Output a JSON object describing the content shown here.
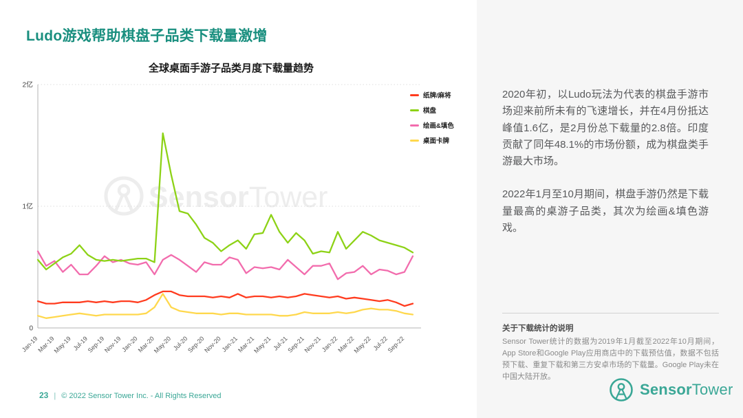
{
  "page": {
    "title": "Ludo游戏帮助棋盘子品类下载量激增",
    "page_number": "23",
    "copyright": "© 2022 Sensor Tower Inc. - All Rights Reserved",
    "brand": {
      "name_bold": "Sensor",
      "name_light": "Tower",
      "teal": "#3aa796"
    }
  },
  "right_panel": {
    "paragraphs": [
      "2020年初，以Ludo玩法为代表的棋盘手游市场迎来前所未有的飞速增长，并在4月份抵达峰值1.6亿，是2月份总下载量的2.8倍。印度贡献了同年48.1%的市场份额，成为棋盘类手游最大市场。",
      "2022年1月至10月期间，棋盘手游仍然是下载量最高的桌游子品类，其次为绘画&填色游戏。"
    ],
    "note_title": "关于下载统计的说明",
    "note_text": "Sensor Tower统计的数据为2019年1月截至2022年10月期间，App Store和Google Play应用商店中的下载预估值，数据不包括预下载、重复下载和第三方安卓市场的下载量。Google Play未在中国大陆开放。"
  },
  "chart_data": {
    "type": "line",
    "title": "全球桌面手游子品类月度下载量趋势",
    "unit": "亿",
    "ylim": [
      0,
      2
    ],
    "grid": "dotted-horizontal",
    "legend_position": "top-right",
    "watermark": "SensorTower",
    "y_ticks": [
      {
        "v": 0,
        "label": "0"
      },
      {
        "v": 1,
        "label": "1亿"
      },
      {
        "v": 2,
        "label": "2亿"
      }
    ],
    "x_tick_step": 2,
    "x": [
      "Jan-19",
      "Feb-19",
      "Mar-19",
      "Apr-19",
      "May-19",
      "Jun-19",
      "Jul-19",
      "Aug-19",
      "Sep-19",
      "Oct-19",
      "Nov-19",
      "Dec-19",
      "Jan-20",
      "Feb-20",
      "Mar-20",
      "Apr-20",
      "May-20",
      "Jun-20",
      "Jul-20",
      "Aug-20",
      "Sep-20",
      "Oct-20",
      "Nov-20",
      "Dec-20",
      "Jan-21",
      "Feb-21",
      "Mar-21",
      "Apr-21",
      "May-21",
      "Jun-21",
      "Jul-21",
      "Aug-21",
      "Sep-21",
      "Oct-21",
      "Nov-21",
      "Dec-21",
      "Jan-22",
      "Feb-22",
      "Mar-22",
      "Apr-22",
      "May-22",
      "Jun-22",
      "Jul-22",
      "Aug-22",
      "Sep-22",
      "Oct-22"
    ],
    "series": [
      {
        "name": "纸牌/麻将",
        "color": "#ff3b1e",
        "values": [
          0.22,
          0.2,
          0.2,
          0.21,
          0.21,
          0.21,
          0.22,
          0.21,
          0.22,
          0.21,
          0.22,
          0.22,
          0.21,
          0.23,
          0.27,
          0.3,
          0.3,
          0.27,
          0.26,
          0.26,
          0.26,
          0.25,
          0.26,
          0.25,
          0.28,
          0.25,
          0.26,
          0.26,
          0.25,
          0.26,
          0.25,
          0.26,
          0.28,
          0.27,
          0.26,
          0.25,
          0.26,
          0.24,
          0.25,
          0.24,
          0.23,
          0.22,
          0.23,
          0.21,
          0.18,
          0.2
        ]
      },
      {
        "name": "棋盘",
        "color": "#8dd216",
        "values": [
          0.56,
          0.48,
          0.53,
          0.58,
          0.61,
          0.68,
          0.6,
          0.56,
          0.55,
          0.56,
          0.55,
          0.56,
          0.57,
          0.57,
          0.54,
          1.6,
          1.26,
          0.96,
          0.94,
          0.85,
          0.74,
          0.7,
          0.63,
          0.68,
          0.72,
          0.65,
          0.77,
          0.78,
          0.93,
          0.79,
          0.7,
          0.78,
          0.72,
          0.61,
          0.63,
          0.62,
          0.79,
          0.65,
          0.72,
          0.79,
          0.76,
          0.72,
          0.7,
          0.68,
          0.66,
          0.62
        ]
      },
      {
        "name": "绘画&填色",
        "color": "#f26cad",
        "values": [
          0.63,
          0.51,
          0.55,
          0.46,
          0.52,
          0.44,
          0.44,
          0.51,
          0.59,
          0.54,
          0.56,
          0.53,
          0.52,
          0.54,
          0.44,
          0.56,
          0.6,
          0.56,
          0.51,
          0.46,
          0.54,
          0.52,
          0.52,
          0.58,
          0.56,
          0.45,
          0.5,
          0.49,
          0.5,
          0.48,
          0.56,
          0.5,
          0.44,
          0.51,
          0.51,
          0.53,
          0.4,
          0.45,
          0.46,
          0.51,
          0.44,
          0.48,
          0.47,
          0.44,
          0.46,
          0.59
        ]
      },
      {
        "name": "桌面卡牌",
        "color": "#ffd84d",
        "values": [
          0.1,
          0.08,
          0.09,
          0.1,
          0.11,
          0.12,
          0.11,
          0.1,
          0.11,
          0.11,
          0.11,
          0.11,
          0.11,
          0.12,
          0.17,
          0.28,
          0.17,
          0.14,
          0.13,
          0.12,
          0.12,
          0.12,
          0.11,
          0.12,
          0.12,
          0.11,
          0.11,
          0.11,
          0.11,
          0.1,
          0.1,
          0.11,
          0.13,
          0.12,
          0.12,
          0.12,
          0.13,
          0.12,
          0.13,
          0.15,
          0.16,
          0.15,
          0.15,
          0.14,
          0.12,
          0.11
        ]
      }
    ]
  }
}
